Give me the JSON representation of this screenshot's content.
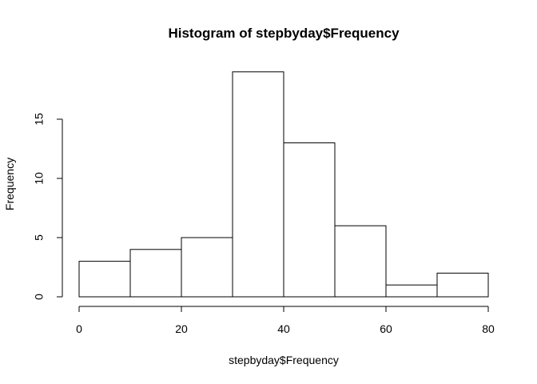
{
  "chart_data": {
    "type": "bar",
    "subtype": "histogram",
    "title": "Histogram of stepbyday$Frequency",
    "xlabel": "stepbyday$Frequency",
    "ylabel": "Frequency",
    "bins": [
      {
        "start": 0,
        "end": 10,
        "count": 3
      },
      {
        "start": 10,
        "end": 20,
        "count": 4
      },
      {
        "start": 20,
        "end": 30,
        "count": 5
      },
      {
        "start": 30,
        "end": 40,
        "count": 19
      },
      {
        "start": 40,
        "end": 50,
        "count": 13
      },
      {
        "start": 50,
        "end": 60,
        "count": 6
      },
      {
        "start": 60,
        "end": 70,
        "count": 1
      },
      {
        "start": 70,
        "end": 80,
        "count": 2
      }
    ],
    "xlim": [
      0,
      80
    ],
    "ylim": [
      0,
      19
    ],
    "x_ticks": [
      "0",
      "20",
      "40",
      "60",
      "80"
    ],
    "y_ticks": [
      "0",
      "5",
      "10",
      "15"
    ],
    "grid": false,
    "bar_fill": "#ffffff",
    "bar_stroke": "#000000"
  }
}
